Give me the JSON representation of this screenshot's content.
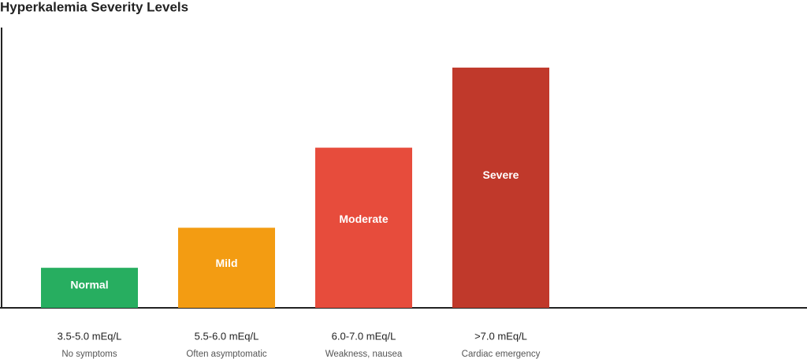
{
  "chart_data": {
    "type": "bar",
    "title": "Hyperkalemia Severity Levels",
    "categories": [
      "3.5-5.0 mEq/L",
      "5.5-6.0 mEq/L",
      "6.0-7.0 mEq/L",
      ">7.0 mEq/L"
    ],
    "descriptions": [
      "No symptoms",
      "Often asymptomatic",
      "Weakness, nausea",
      "Cardiac emergency"
    ],
    "level_names": [
      "Normal",
      "Mild",
      "Moderate",
      "Severe"
    ],
    "values": [
      1,
      2,
      4,
      6
    ],
    "colors": [
      "#27ae60",
      "#f39c12",
      "#e74c3c",
      "#c0392b"
    ],
    "ylim": [
      0,
      7
    ]
  }
}
